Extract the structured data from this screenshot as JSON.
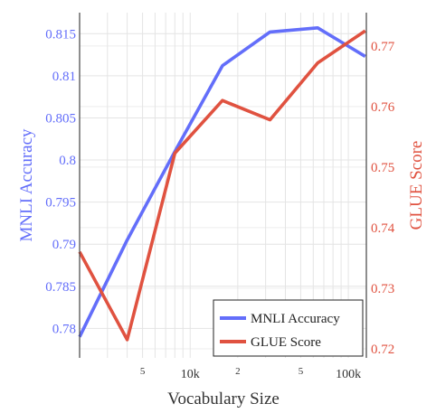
{
  "chart_data": {
    "type": "line",
    "xlabel": "Vocabulary Size",
    "ylabel_left": "MNLI Accuracy",
    "ylabel_right": "GLUE Score",
    "x_scale": "log",
    "x_range": [
      2000,
      130000
    ],
    "x_ticks": [
      {
        "value": 5000,
        "label": "5",
        "minor": true
      },
      {
        "value": 10000,
        "label": "10k",
        "minor": false
      },
      {
        "value": 20000,
        "label": "2",
        "minor": true
      },
      {
        "value": 50000,
        "label": "5",
        "minor": true
      },
      {
        "value": 100000,
        "label": "100k",
        "minor": false
      }
    ],
    "y_left_range": [
      0.7765,
      0.8175
    ],
    "y_left_ticks": [
      "0.78",
      "0.785",
      "0.79",
      "0.795",
      "0.8",
      "0.805",
      "0.81",
      "0.815"
    ],
    "y_right_range": [
      0.7185,
      0.7755
    ],
    "y_right_ticks": [
      "0.72",
      "0.73",
      "0.74",
      "0.75",
      "0.76",
      "0.77"
    ],
    "grid": true,
    "legend_position": "bottom-right",
    "series": [
      {
        "name": "MNLI Accuracy",
        "axis": "left",
        "color": "#636efa",
        "x": [
          2000,
          4000,
          8000,
          16000,
          32000,
          64000,
          128000
        ],
        "y": [
          0.779,
          0.7905,
          0.801,
          0.8112,
          0.8152,
          0.8157,
          0.8123
        ]
      },
      {
        "name": "GLUE Score",
        "axis": "right",
        "color": "#e05240",
        "x": [
          2000,
          4000,
          8000,
          16000,
          32000,
          64000,
          128000
        ],
        "y": [
          0.736,
          0.7215,
          0.7523,
          0.761,
          0.7578,
          0.7672,
          0.7725
        ]
      }
    ]
  }
}
